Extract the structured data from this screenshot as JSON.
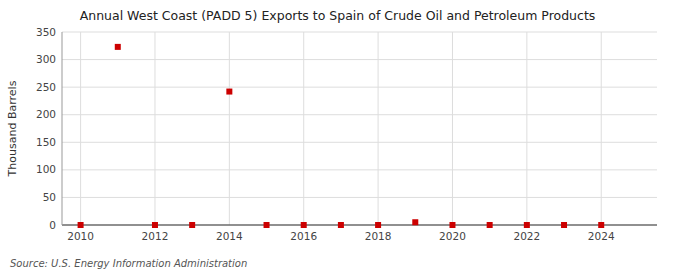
{
  "chart_data": {
    "type": "scatter",
    "title": "Annual West Coast (PADD 5) Exports to Spain of Crude Oil and Petroleum Products",
    "y_label": "Thousand Barrels",
    "source": "Source: U.S. Energy Information Administration",
    "x": [
      2010,
      2011,
      2012,
      2013,
      2014,
      2015,
      2016,
      2017,
      2018,
      2019,
      2020,
      2021,
      2022,
      2023,
      2024
    ],
    "values": [
      0,
      323,
      0,
      0,
      242,
      0,
      0,
      0,
      0,
      5,
      0,
      0,
      0,
      0,
      0
    ],
    "xlim": [
      2009.5,
      2025.5
    ],
    "ylim": [
      0,
      350
    ],
    "xticks": [
      2010,
      2012,
      2014,
      2016,
      2018,
      2020,
      2022,
      2024
    ],
    "yticks": [
      0,
      50,
      100,
      150,
      200,
      250,
      300,
      350
    ],
    "color": "#cc0000",
    "marker": "square",
    "grid": true
  }
}
